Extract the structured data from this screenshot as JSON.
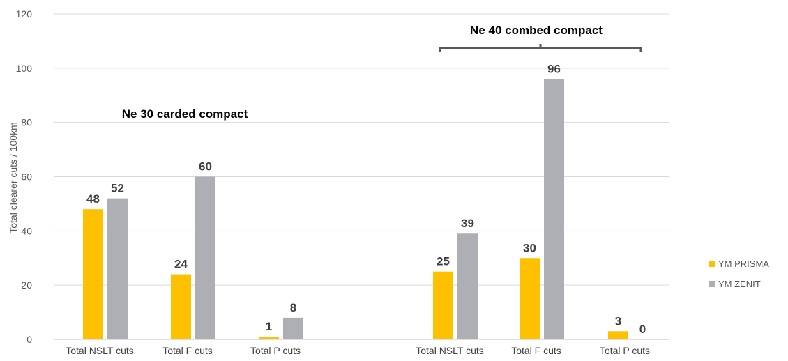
{
  "chart_data": {
    "type": "bar",
    "ylabel": "Total clearer cuts  / 100km",
    "ylim": [
      0,
      120
    ],
    "yticks": [
      0,
      20,
      40,
      60,
      80,
      100,
      120
    ],
    "grid": true,
    "legend_position": "right",
    "categories": [
      "Total NSLT cuts",
      "Total F cuts",
      "Total P cuts",
      "Total NSLT cuts",
      "Total F cuts",
      "Total P cuts"
    ],
    "series": [
      {
        "name": "YM PRISMA",
        "color": "#FFC000",
        "values": [
          48,
          24,
          1,
          25,
          30,
          3
        ]
      },
      {
        "name": "YM ZENIT",
        "color": "#ADAFB4",
        "values": [
          52,
          60,
          8,
          39,
          96,
          0
        ]
      }
    ],
    "groups": [
      {
        "label": "Ne 30 carded compact",
        "categories": [
          0,
          1,
          2
        ]
      },
      {
        "label": "Ne 40 combed compact",
        "categories": [
          3,
          4,
          5
        ]
      }
    ],
    "colors": {
      "grid": "#D9D9D9",
      "bracket": "#595959",
      "text": "#404040"
    }
  }
}
